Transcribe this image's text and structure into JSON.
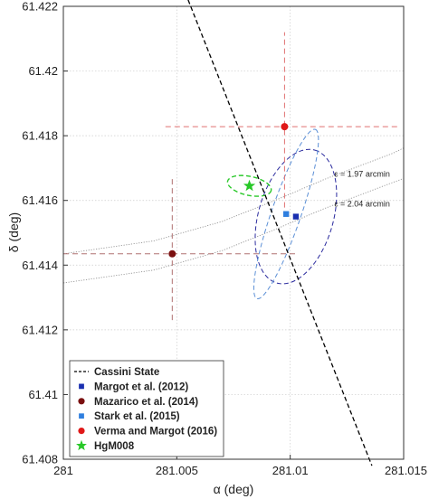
{
  "chart_data": {
    "type": "scatter",
    "title": "",
    "xlabel": "α (deg)",
    "ylabel": "δ (deg)",
    "xlim": [
      281,
      281.015
    ],
    "ylim": [
      61.408,
      61.422
    ],
    "x_ticks": [
      281,
      281.005,
      281.01,
      281.015
    ],
    "x_tick_labels": [
      "281",
      "281.005",
      "281.01",
      "281.015"
    ],
    "y_ticks": [
      61.408,
      61.41,
      61.412,
      61.414,
      61.416,
      61.418,
      61.42,
      61.422
    ],
    "y_tick_labels": [
      "61.408",
      "61.41",
      "61.412",
      "61.414",
      "61.416",
      "61.418",
      "61.42",
      "61.422"
    ],
    "grid": true,
    "legend_position": "bottom-left",
    "series": [
      {
        "name": "Cassini State",
        "kind": "line",
        "color": "#000000",
        "x": [
          281.0055,
          281.0136
        ],
        "y": [
          61.4222,
          61.4078
        ]
      },
      {
        "name": "Margot et al. (2012)",
        "kind": "point",
        "color": "#1a2fb0",
        "x": [
          281.01025
        ],
        "y": [
          61.4155
        ]
      },
      {
        "name": "Mazarico et al. (2014)",
        "kind": "point",
        "color": "#7a1010",
        "x": [
          281.0048
        ],
        "y": [
          61.41435
        ],
        "xerr": [
          281.0,
          281.0103
        ],
        "yerr": [
          61.4123,
          61.4167
        ]
      },
      {
        "name": "Stark et al. (2015)",
        "kind": "point",
        "color": "#2f7fdf",
        "x": [
          281.00982
        ],
        "y": [
          61.41558
        ]
      },
      {
        "name": "Verma and Margot (2016)",
        "kind": "point",
        "color": "#e01818",
        "x": [
          281.00975
        ],
        "y": [
          61.41828
        ],
        "xerr": [
          281.0045,
          281.0148
        ],
        "yerr": [
          61.4155,
          61.4212
        ]
      },
      {
        "name": "HgM008",
        "kind": "point",
        "color": "#28c828",
        "x": [
          281.0082
        ],
        "y": [
          61.41645
        ]
      }
    ],
    "curves": [
      {
        "label": "ε = 1.97 arcmin",
        "color": "#888888",
        "x": [
          281.0,
          281.004,
          281.007,
          281.0095,
          281.0115,
          281.013,
          281.0145,
          281.015
        ],
        "y": [
          61.41435,
          61.41475,
          61.41535,
          61.41605,
          61.41665,
          61.41705,
          61.41745,
          61.41762
        ]
      },
      {
        "label": "ε = 2.04 arcmin",
        "color": "#888888",
        "x": [
          281.0,
          281.004,
          281.007,
          281.0095,
          281.0115,
          281.013,
          281.0145,
          281.015
        ],
        "y": [
          61.41345,
          61.41385,
          61.41445,
          61.41515,
          61.41575,
          61.41615,
          61.41655,
          61.41668
        ]
      }
    ],
    "ellipses": [
      {
        "color": "#2a2a9e",
        "cx": 281.01025,
        "cy": 61.4155,
        "a": 0.00305,
        "b": 0.00165,
        "angle_deg": 74
      },
      {
        "color": "#5b8fd6",
        "cx": 281.00982,
        "cy": 61.41558,
        "a": 0.00395,
        "b": 0.00065,
        "angle_deg": 71
      },
      {
        "color": "#28c828",
        "cx": 281.0082,
        "cy": 61.41645,
        "a": 0.00098,
        "b": 0.00042,
        "angle_deg": -12
      }
    ]
  }
}
